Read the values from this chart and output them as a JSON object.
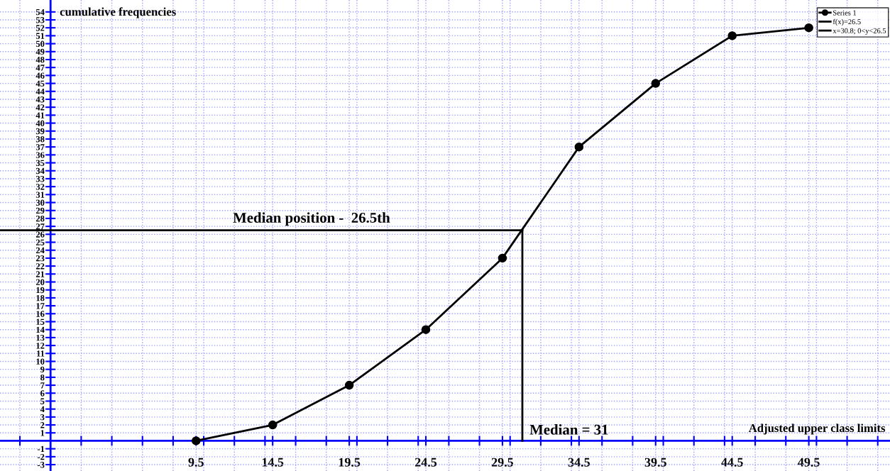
{
  "chart_data": {
    "type": "line",
    "xlabel": "Adjusted upper class limits",
    "ylabel": "cumulative frequencies",
    "series": [
      {
        "name": "Series 1",
        "color": "#000000",
        "x": [
          9.5,
          14.5,
          19.5,
          24.5,
          29.5,
          34.5,
          39.5,
          44.5,
          49.5
        ],
        "values": [
          0,
          2,
          7,
          14,
          23,
          37,
          45,
          51,
          52
        ],
        "marker": "circle"
      },
      {
        "name": "f(x)=26.5",
        "color": "#000000",
        "x": [
          -3.3,
          30.8
        ],
        "values": [
          26.5,
          26.5
        ],
        "marker": "none"
      },
      {
        "name": "x=30.8; 0<y<26.5",
        "color": "#000000",
        "x": [
          30.8,
          30.8
        ],
        "values": [
          0,
          26.5
        ],
        "marker": "none"
      }
    ],
    "annotations": [
      "Median position -  26.5th",
      "Median = 31"
    ],
    "xlim": [
      -3.3,
      54.8
    ],
    "ylim": [
      -3.8,
      55.5
    ],
    "xticks": [
      {
        "value": -2,
        "label": null
      },
      {
        "value": 2,
        "label": null
      },
      {
        "value": 4,
        "label": null
      },
      {
        "value": 6,
        "label": null
      },
      {
        "value": 8,
        "label": null
      },
      {
        "value": 9.5,
        "label": "9.5"
      },
      {
        "value": 10,
        "label": null
      },
      {
        "value": 12,
        "label": null
      },
      {
        "value": 14,
        "label": null
      },
      {
        "value": 14.5,
        "label": "14.5"
      },
      {
        "value": 16,
        "label": null
      },
      {
        "value": 18,
        "label": null
      },
      {
        "value": 19.5,
        "label": "19.5"
      },
      {
        "value": 20,
        "label": null
      },
      {
        "value": 22,
        "label": null
      },
      {
        "value": 24,
        "label": null
      },
      {
        "value": 24.5,
        "label": "24.5"
      },
      {
        "value": 26,
        "label": null
      },
      {
        "value": 28,
        "label": null
      },
      {
        "value": 29.5,
        "label": "29.5"
      },
      {
        "value": 30,
        "label": null
      },
      {
        "value": 32,
        "label": null
      },
      {
        "value": 34,
        "label": null
      },
      {
        "value": 34.5,
        "label": "34.5"
      },
      {
        "value": 36,
        "label": null
      },
      {
        "value": 38,
        "label": null
      },
      {
        "value": 39.5,
        "label": "39.5"
      },
      {
        "value": 40,
        "label": null
      },
      {
        "value": 42,
        "label": null
      },
      {
        "value": 44,
        "label": null
      },
      {
        "value": 44.5,
        "label": "44.5"
      },
      {
        "value": 46,
        "label": null
      },
      {
        "value": 48,
        "label": null
      },
      {
        "value": 49.5,
        "label": "49.5"
      },
      {
        "value": 50,
        "label": null
      },
      {
        "value": 52,
        "label": null
      },
      {
        "value": 54,
        "label": null
      }
    ],
    "yticks": [
      -3,
      -2,
      -1,
      1,
      2,
      3,
      4,
      5,
      6,
      7,
      8,
      9,
      10,
      11,
      12,
      13,
      14,
      15,
      16,
      17,
      18,
      19,
      20,
      21,
      22,
      23,
      24,
      25,
      26,
      27,
      28,
      29,
      30,
      31,
      32,
      33,
      34,
      35,
      36,
      37,
      38,
      39,
      40,
      41,
      42,
      43,
      44,
      45,
      46,
      47,
      48,
      49,
      50,
      51,
      52,
      53,
      54
    ],
    "ref_lines": [
      {
        "axis": "y",
        "value": 0,
        "color": "#0000ff",
        "line_style": "solid"
      }
    ],
    "grid": true,
    "legend": "top right",
    "line_style": "solid"
  }
}
